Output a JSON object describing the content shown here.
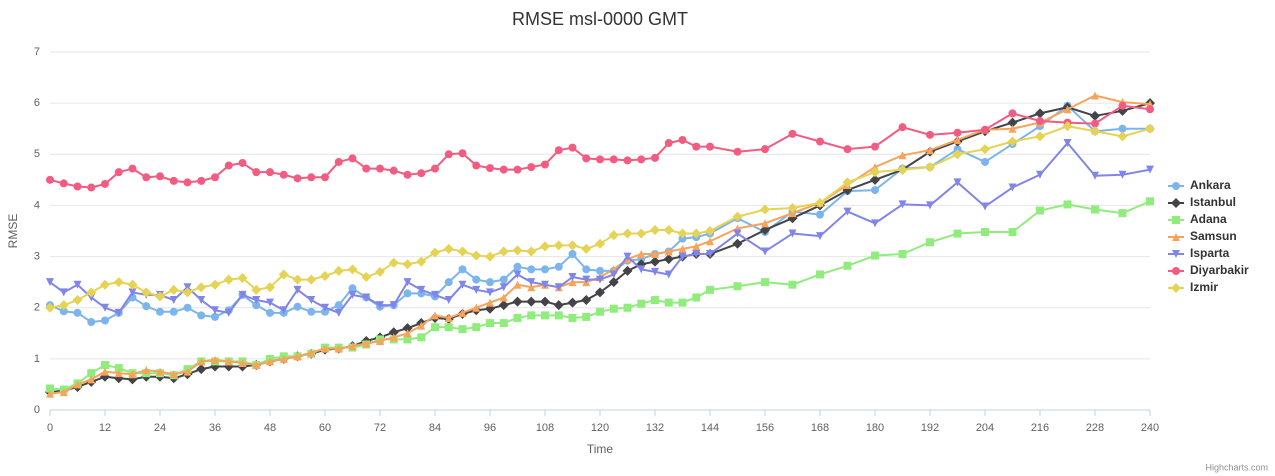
{
  "chart_data": {
    "type": "line",
    "title": "RMSE msl-0000 GMT",
    "x_label": "Time",
    "y_label": "RMSE",
    "credits": "Highcharts.com",
    "x": [
      0,
      3,
      6,
      9,
      12,
      15,
      18,
      21,
      24,
      27,
      30,
      33,
      36,
      39,
      42,
      45,
      48,
      51,
      54,
      57,
      60,
      63,
      66,
      69,
      72,
      75,
      78,
      81,
      84,
      87,
      90,
      93,
      96,
      99,
      102,
      105,
      108,
      111,
      114,
      117,
      120,
      123,
      126,
      129,
      132,
      135,
      138,
      141,
      144,
      150,
      156,
      162,
      168,
      174,
      180,
      186,
      192,
      198,
      204,
      210,
      216,
      222,
      228,
      234,
      240
    ],
    "xlim": [
      0,
      240
    ],
    "xticks": [
      0,
      12,
      24,
      36,
      48,
      60,
      72,
      84,
      96,
      108,
      120,
      132,
      144,
      156,
      168,
      180,
      192,
      204,
      216,
      228,
      240
    ],
    "ylim": [
      0,
      7
    ],
    "yticks": [
      0,
      1,
      2,
      3,
      4,
      5,
      6,
      7
    ],
    "grid": true,
    "legend": "right",
    "series": [
      {
        "name": "Ankara",
        "color": "#7cb5ec",
        "marker": "circle",
        "values": [
          2.05,
          1.93,
          1.9,
          1.72,
          1.75,
          1.9,
          2.2,
          2.03,
          1.92,
          1.92,
          2.0,
          1.85,
          1.82,
          1.95,
          2.25,
          2.05,
          1.9,
          1.9,
          2.02,
          1.92,
          1.92,
          2.05,
          2.38,
          2.2,
          2.02,
          2.05,
          2.28,
          2.28,
          2.22,
          2.5,
          2.75,
          2.55,
          2.5,
          2.55,
          2.8,
          2.75,
          2.75,
          2.8,
          3.05,
          2.75,
          2.72,
          2.72,
          2.92,
          2.95,
          3.05,
          3.1,
          3.35,
          3.38,
          3.45,
          3.75,
          3.48,
          3.88,
          3.82,
          4.28,
          4.3,
          4.72,
          4.75,
          5.1,
          4.85,
          5.2,
          5.55,
          5.95,
          5.45,
          5.5,
          5.5
        ]
      },
      {
        "name": "Istanbul",
        "color": "#434348",
        "marker": "diamond",
        "values": [
          0.35,
          0.38,
          0.45,
          0.55,
          0.65,
          0.62,
          0.6,
          0.65,
          0.65,
          0.62,
          0.7,
          0.8,
          0.85,
          0.85,
          0.85,
          0.88,
          0.95,
          1.0,
          1.05,
          1.1,
          1.18,
          1.2,
          1.25,
          1.35,
          1.42,
          1.52,
          1.6,
          1.7,
          1.8,
          1.78,
          1.88,
          1.95,
          1.98,
          2.05,
          2.12,
          2.12,
          2.12,
          2.05,
          2.1,
          2.15,
          2.3,
          2.5,
          2.72,
          2.85,
          2.9,
          2.95,
          3.0,
          3.05,
          3.05,
          3.25,
          3.52,
          3.75,
          4.0,
          4.3,
          4.5,
          4.7,
          5.05,
          5.25,
          5.45,
          5.62,
          5.8,
          5.92,
          5.75,
          5.85,
          6.0
        ]
      },
      {
        "name": "Adana",
        "color": "#90ed7d",
        "marker": "square",
        "values": [
          0.42,
          0.4,
          0.52,
          0.72,
          0.88,
          0.82,
          0.72,
          0.72,
          0.72,
          0.68,
          0.8,
          0.95,
          0.95,
          0.95,
          0.95,
          0.88,
          1.0,
          1.05,
          1.05,
          1.1,
          1.22,
          1.22,
          1.22,
          1.28,
          1.38,
          1.38,
          1.38,
          1.42,
          1.62,
          1.62,
          1.58,
          1.62,
          1.7,
          1.7,
          1.8,
          1.85,
          1.85,
          1.85,
          1.8,
          1.82,
          1.92,
          1.98,
          2.0,
          2.08,
          2.15,
          2.1,
          2.1,
          2.2,
          2.35,
          2.42,
          2.5,
          2.45,
          2.65,
          2.82,
          3.02,
          3.05,
          3.28,
          3.45,
          3.48,
          3.48,
          3.9,
          4.02,
          3.92,
          3.85,
          4.08
        ]
      },
      {
        "name": "Samsun",
        "color": "#f7a35c",
        "marker": "triangle",
        "values": [
          0.32,
          0.35,
          0.5,
          0.6,
          0.75,
          0.72,
          0.7,
          0.78,
          0.75,
          0.7,
          0.75,
          0.95,
          0.98,
          0.95,
          0.92,
          0.88,
          0.95,
          1.0,
          1.05,
          1.12,
          1.2,
          1.2,
          1.25,
          1.3,
          1.35,
          1.42,
          1.5,
          1.65,
          1.85,
          1.8,
          1.9,
          2.0,
          2.1,
          2.2,
          2.45,
          2.4,
          2.45,
          2.4,
          2.5,
          2.5,
          2.6,
          2.75,
          2.95,
          3.05,
          3.05,
          3.1,
          3.15,
          3.2,
          3.3,
          3.55,
          3.65,
          3.85,
          4.05,
          4.4,
          4.75,
          4.98,
          5.08,
          5.28,
          5.48,
          5.5,
          5.62,
          5.88,
          6.15,
          6.02,
          5.98
        ]
      },
      {
        "name": "Isparta",
        "color": "#8085e9",
        "marker": "triangle-down",
        "values": [
          2.5,
          2.3,
          2.45,
          2.2,
          2.0,
          1.9,
          2.3,
          2.25,
          2.25,
          2.15,
          2.4,
          2.15,
          1.95,
          1.9,
          2.25,
          2.15,
          2.1,
          1.95,
          2.35,
          2.15,
          2.0,
          1.9,
          2.25,
          2.2,
          2.05,
          2.05,
          2.5,
          2.35,
          2.25,
          2.15,
          2.45,
          2.35,
          2.3,
          2.4,
          2.65,
          2.5,
          2.45,
          2.4,
          2.6,
          2.55,
          2.55,
          2.65,
          3.0,
          2.75,
          2.7,
          2.65,
          3.0,
          3.05,
          3.05,
          3.45,
          3.1,
          3.45,
          3.4,
          3.88,
          3.65,
          4.02,
          4.0,
          4.45,
          3.98,
          4.35,
          4.6,
          5.22,
          4.58,
          4.6,
          4.7
        ]
      },
      {
        "name": "Diyarbakir",
        "color": "#f15c80",
        "marker": "circle",
        "values": [
          4.5,
          4.43,
          4.37,
          4.35,
          4.42,
          4.65,
          4.72,
          4.55,
          4.57,
          4.48,
          4.45,
          4.48,
          4.55,
          4.78,
          4.83,
          4.65,
          4.65,
          4.6,
          4.53,
          4.55,
          4.55,
          4.85,
          4.92,
          4.72,
          4.72,
          4.68,
          4.6,
          4.63,
          4.72,
          5.0,
          5.02,
          4.78,
          4.73,
          4.7,
          4.7,
          4.75,
          4.8,
          5.08,
          5.13,
          4.92,
          4.9,
          4.9,
          4.88,
          4.9,
          4.93,
          5.22,
          5.28,
          5.15,
          5.15,
          5.05,
          5.1,
          5.4,
          5.25,
          5.1,
          5.15,
          5.53,
          5.38,
          5.42,
          5.48,
          5.8,
          5.65,
          5.62,
          5.6,
          5.95,
          5.88
        ]
      },
      {
        "name": "Izmir",
        "color": "#e4d354",
        "marker": "diamond",
        "values": [
          2.0,
          2.05,
          2.15,
          2.3,
          2.45,
          2.5,
          2.45,
          2.3,
          2.22,
          2.35,
          2.3,
          2.4,
          2.45,
          2.55,
          2.58,
          2.35,
          2.4,
          2.65,
          2.55,
          2.55,
          2.62,
          2.72,
          2.75,
          2.6,
          2.7,
          2.88,
          2.85,
          2.9,
          3.08,
          3.15,
          3.1,
          3.02,
          3.0,
          3.1,
          3.12,
          3.1,
          3.2,
          3.22,
          3.22,
          3.15,
          3.25,
          3.42,
          3.45,
          3.45,
          3.52,
          3.52,
          3.45,
          3.45,
          3.5,
          3.78,
          3.92,
          3.95,
          4.05,
          4.45,
          4.65,
          4.7,
          4.75,
          5.0,
          5.1,
          5.25,
          5.35,
          5.55,
          5.45,
          5.35,
          5.5
        ]
      }
    ]
  }
}
